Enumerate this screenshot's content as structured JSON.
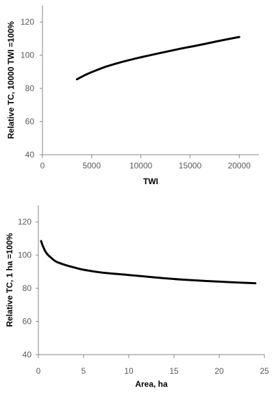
{
  "chart_data": [
    {
      "type": "line",
      "title": "",
      "xlabel": "TWI",
      "ylabel": "Relative TC,  10000 TWI  =100%",
      "xlim": [
        0,
        22000
      ],
      "ylim": [
        40,
        130
      ],
      "x_ticks": [
        0,
        5000,
        10000,
        15000,
        20000
      ],
      "x_tick_labels": [
        "0",
        "5000",
        "10000",
        "15000",
        "20000"
      ],
      "y_ticks": [
        40,
        60,
        80,
        100,
        120
      ],
      "y_tick_labels": [
        "40",
        "60",
        "80",
        "100",
        "120"
      ],
      "grid": false,
      "series": [
        {
          "color": "#000000",
          "x": [
            3500,
            4500,
            5500,
            6500,
            7500,
            8500,
            9500,
            10500,
            12000,
            14000,
            16000,
            18000,
            20000
          ],
          "y": [
            85.5,
            88.5,
            91,
            93.2,
            95,
            96.6,
            98.1,
            99.4,
            101.4,
            103.9,
            106.2,
            108.7,
            111
          ]
        }
      ]
    },
    {
      "type": "line",
      "title": "",
      "xlabel": "Area, ha",
      "ylabel": "Relative TC,  1 ha  =100%",
      "xlim": [
        0,
        25
      ],
      "ylim": [
        40,
        130
      ],
      "x_ticks": [
        0,
        5,
        10,
        15,
        20,
        25
      ],
      "x_tick_labels": [
        "0",
        "5",
        "10",
        "15",
        "20",
        "25"
      ],
      "y_ticks": [
        40,
        60,
        80,
        100,
        120
      ],
      "y_tick_labels": [
        "40",
        "60",
        "80",
        "100",
        "120"
      ],
      "grid": false,
      "series": [
        {
          "color": "#000000",
          "x": [
            0.3,
            0.5,
            0.75,
            1,
            1.5,
            2,
            3,
            4,
            5,
            7,
            10,
            13,
            16,
            20,
            24
          ],
          "y": [
            108.5,
            105.5,
            102.5,
            100.5,
            98,
            96,
            94,
            92.5,
            91.2,
            89.5,
            88,
            86.5,
            85.2,
            84,
            83
          ]
        }
      ]
    }
  ]
}
